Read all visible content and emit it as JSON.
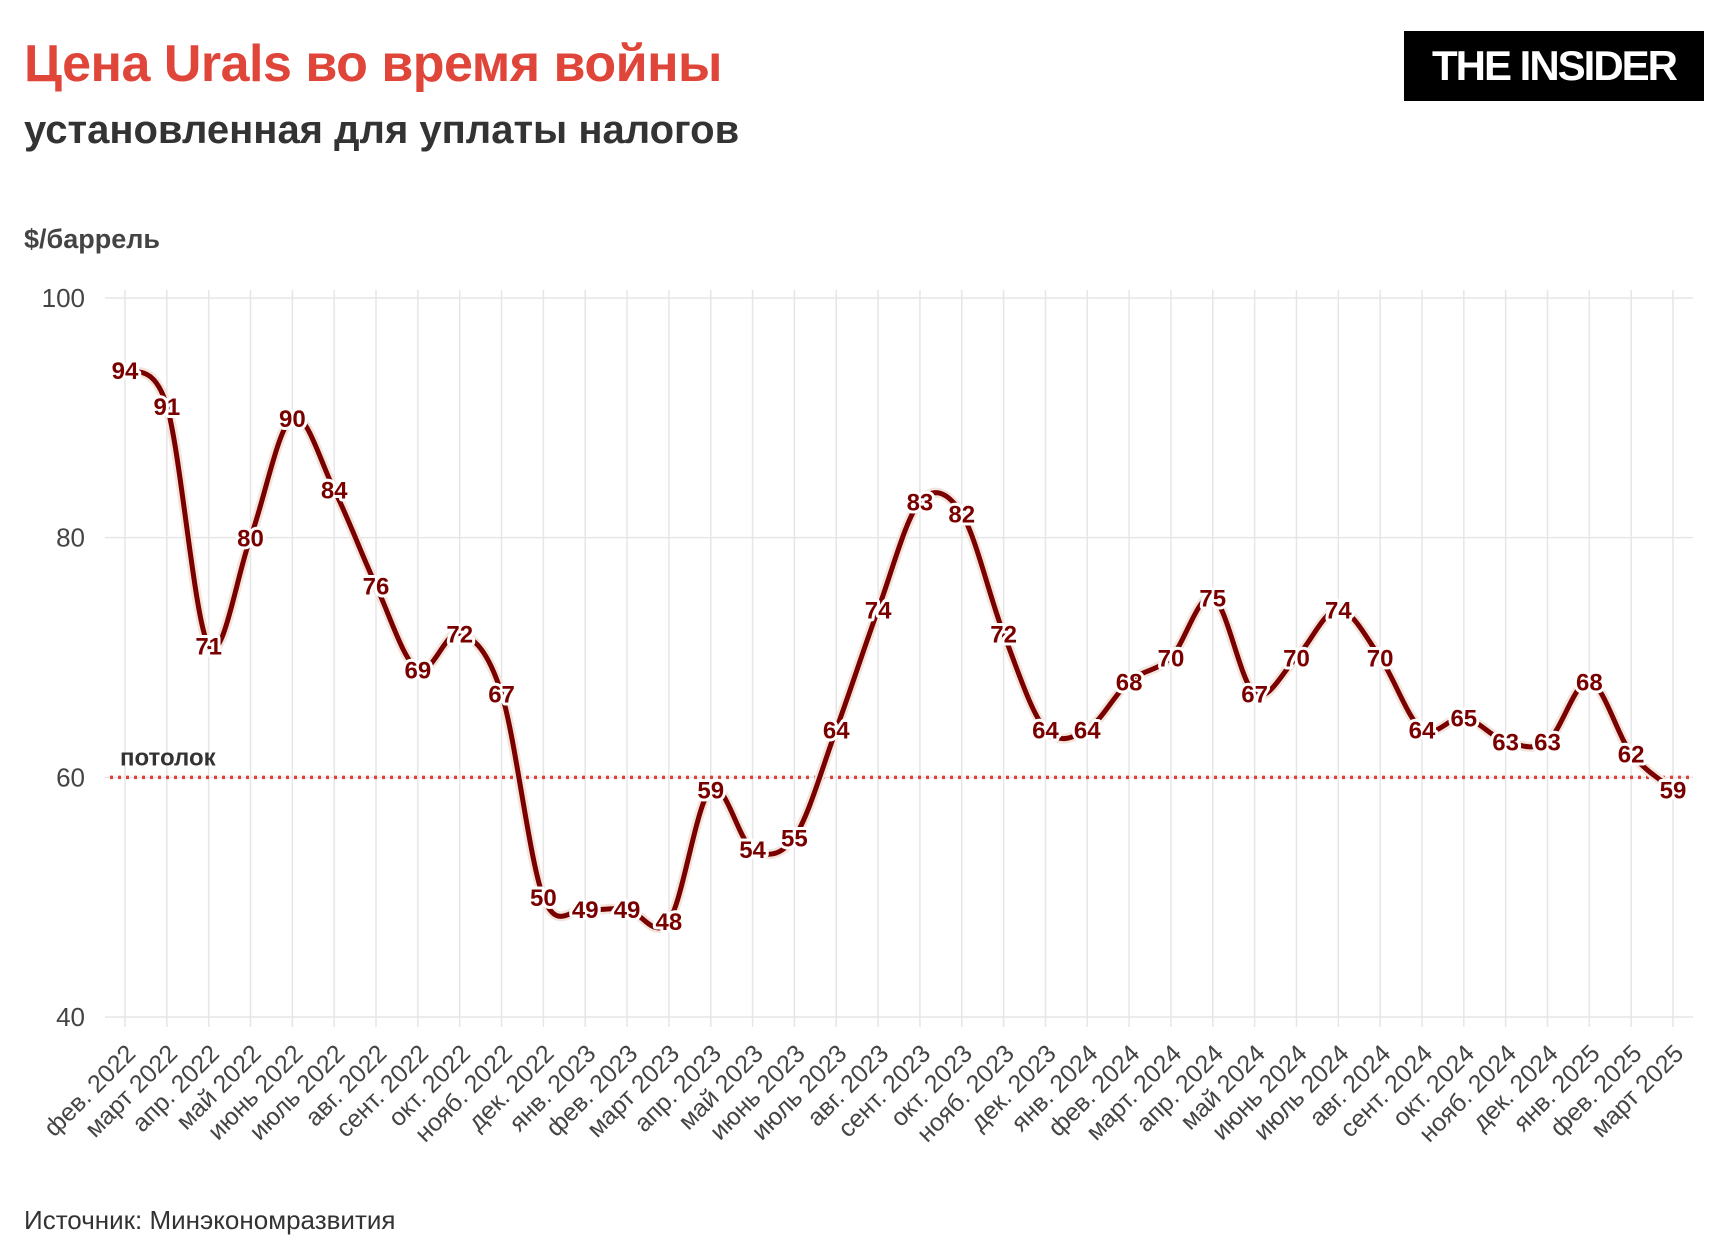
{
  "header": {
    "title": "Цена Urals во время войны",
    "subtitle": "установленная для уплаты налогов",
    "logo": "THE INSIDER"
  },
  "footer": {
    "source": "Источник: Минэкономразвития"
  },
  "colors": {
    "title": "#e0453a",
    "line": "#7a0000",
    "ceiling": "#d9453c",
    "grid": "#e6e6e6"
  },
  "chart_data": {
    "type": "line",
    "title": "Цена Urals во время войны",
    "subtitle": "установленная для уплаты налогов",
    "ylabel": "$/баррель",
    "xlabel": "",
    "ylim": [
      40,
      100
    ],
    "yticks": [
      40,
      60,
      80,
      100
    ],
    "grid": true,
    "categories": [
      "фев. 2022",
      "март 2022",
      "апр. 2022",
      "май 2022",
      "июнь 2022",
      "июль 2022",
      "авг. 2022",
      "сент. 2022",
      "окт. 2022",
      "нояб. 2022",
      "дек. 2022",
      "янв. 2023",
      "фев. 2023",
      "март 2023",
      "апр. 2023",
      "май 2023",
      "июнь 2023",
      "июль 2023",
      "авг. 2023",
      "сент. 2023",
      "окт. 2023",
      "нояб. 2023",
      "дек. 2023",
      "янв. 2024",
      "фев. 2024",
      "март. 2024",
      "апр. 2024",
      "май 2024",
      "июнь 2024",
      "июль 2024",
      "авг. 2024",
      "сент. 2024",
      "окт. 2024",
      "нояб. 2024",
      "дек. 2024",
      "янв. 2025",
      "фев. 2025",
      "март 2025"
    ],
    "values": [
      94,
      91,
      71,
      80,
      90,
      84,
      76,
      69,
      72,
      67,
      50,
      49,
      49,
      48,
      59,
      54,
      55,
      64,
      74,
      83,
      82,
      72,
      64,
      64,
      68,
      70,
      75,
      67,
      70,
      74,
      70,
      64,
      65,
      63,
      63,
      68,
      62,
      59
    ],
    "reference_line": {
      "value": 60,
      "label": "потолок"
    }
  }
}
